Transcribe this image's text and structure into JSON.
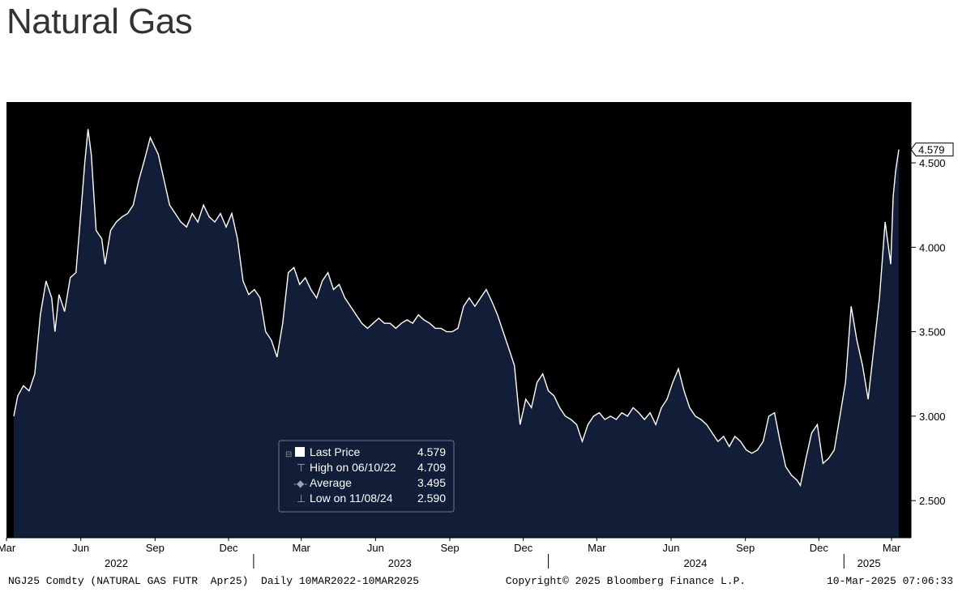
{
  "title": "Natural Gas",
  "chart_data": {
    "type": "area",
    "title": "Natural Gas",
    "xlabel": "",
    "ylabel": "",
    "ylim": [
      2.28,
      4.86
    ],
    "yticks": [
      2.5,
      3.0,
      3.5,
      4.0,
      4.5
    ],
    "ytick_labels": [
      "2.500",
      "3.000",
      "3.500",
      "4.000",
      "4.500"
    ],
    "x_range": [
      "2022-03-01",
      "2025-03-13"
    ],
    "month_ticks": [
      {
        "label": "Mar",
        "date": "2022-03-01"
      },
      {
        "label": "Jun",
        "date": "2022-06-01"
      },
      {
        "label": "Sep",
        "date": "2022-09-01"
      },
      {
        "label": "Dec",
        "date": "2022-12-01"
      },
      {
        "label": "Mar",
        "date": "2023-03-01"
      },
      {
        "label": "Jun",
        "date": "2023-06-01"
      },
      {
        "label": "Sep",
        "date": "2023-09-01"
      },
      {
        "label": "Dec",
        "date": "2023-12-01"
      },
      {
        "label": "Mar",
        "date": "2024-03-01"
      },
      {
        "label": "Jun",
        "date": "2024-06-01"
      },
      {
        "label": "Sep",
        "date": "2024-09-01"
      },
      {
        "label": "Dec",
        "date": "2024-12-01"
      },
      {
        "label": "Mar",
        "date": "2025-03-01"
      }
    ],
    "year_labels": [
      {
        "label": "2022",
        "date": "2022-07-15"
      },
      {
        "label": "2023",
        "date": "2023-07-01"
      },
      {
        "label": "2024",
        "date": "2024-07-01"
      },
      {
        "label": "2025",
        "date": "2025-02-01"
      }
    ],
    "year_dividers": [
      "2023-01-01",
      "2024-01-01",
      "2025-01-01"
    ],
    "series": [
      {
        "name": "Last Price",
        "points": [
          [
            "2022-03-10",
            3.0
          ],
          [
            "2022-03-15",
            3.12
          ],
          [
            "2022-03-22",
            3.18
          ],
          [
            "2022-03-29",
            3.15
          ],
          [
            "2022-04-05",
            3.25
          ],
          [
            "2022-04-12",
            3.6
          ],
          [
            "2022-04-19",
            3.8
          ],
          [
            "2022-04-26",
            3.7
          ],
          [
            "2022-04-30",
            3.5
          ],
          [
            "2022-05-05",
            3.72
          ],
          [
            "2022-05-12",
            3.62
          ],
          [
            "2022-05-19",
            3.82
          ],
          [
            "2022-05-26",
            3.85
          ],
          [
            "2022-06-01",
            4.2
          ],
          [
            "2022-06-06",
            4.5
          ],
          [
            "2022-06-10",
            4.7
          ],
          [
            "2022-06-14",
            4.55
          ],
          [
            "2022-06-20",
            4.1
          ],
          [
            "2022-06-27",
            4.05
          ],
          [
            "2022-07-01",
            3.9
          ],
          [
            "2022-07-08",
            4.1
          ],
          [
            "2022-07-15",
            4.15
          ],
          [
            "2022-07-22",
            4.18
          ],
          [
            "2022-07-29",
            4.2
          ],
          [
            "2022-08-05",
            4.25
          ],
          [
            "2022-08-12",
            4.4
          ],
          [
            "2022-08-19",
            4.52
          ],
          [
            "2022-08-26",
            4.65
          ],
          [
            "2022-08-31",
            4.6
          ],
          [
            "2022-09-05",
            4.55
          ],
          [
            "2022-09-12",
            4.4
          ],
          [
            "2022-09-19",
            4.25
          ],
          [
            "2022-09-26",
            4.2
          ],
          [
            "2022-10-03",
            4.15
          ],
          [
            "2022-10-10",
            4.12
          ],
          [
            "2022-10-17",
            4.2
          ],
          [
            "2022-10-24",
            4.15
          ],
          [
            "2022-10-31",
            4.25
          ],
          [
            "2022-11-07",
            4.18
          ],
          [
            "2022-11-14",
            4.15
          ],
          [
            "2022-11-21",
            4.2
          ],
          [
            "2022-11-28",
            4.12
          ],
          [
            "2022-12-05",
            4.2
          ],
          [
            "2022-12-12",
            4.05
          ],
          [
            "2022-12-19",
            3.8
          ],
          [
            "2022-12-26",
            3.72
          ],
          [
            "2023-01-02",
            3.75
          ],
          [
            "2023-01-09",
            3.7
          ],
          [
            "2023-01-16",
            3.5
          ],
          [
            "2023-01-23",
            3.45
          ],
          [
            "2023-01-30",
            3.35
          ],
          [
            "2023-02-06",
            3.55
          ],
          [
            "2023-02-13",
            3.85
          ],
          [
            "2023-02-20",
            3.88
          ],
          [
            "2023-02-27",
            3.78
          ],
          [
            "2023-03-06",
            3.82
          ],
          [
            "2023-03-13",
            3.75
          ],
          [
            "2023-03-20",
            3.7
          ],
          [
            "2023-03-27",
            3.8
          ],
          [
            "2023-04-03",
            3.85
          ],
          [
            "2023-04-10",
            3.75
          ],
          [
            "2023-04-17",
            3.78
          ],
          [
            "2023-04-24",
            3.7
          ],
          [
            "2023-05-01",
            3.65
          ],
          [
            "2023-05-08",
            3.6
          ],
          [
            "2023-05-15",
            3.55
          ],
          [
            "2023-05-22",
            3.52
          ],
          [
            "2023-05-29",
            3.55
          ],
          [
            "2023-06-05",
            3.58
          ],
          [
            "2023-06-12",
            3.55
          ],
          [
            "2023-06-19",
            3.55
          ],
          [
            "2023-06-26",
            3.52
          ],
          [
            "2023-07-03",
            3.55
          ],
          [
            "2023-07-10",
            3.57
          ],
          [
            "2023-07-17",
            3.55
          ],
          [
            "2023-07-24",
            3.6
          ],
          [
            "2023-07-31",
            3.57
          ],
          [
            "2023-08-07",
            3.55
          ],
          [
            "2023-08-14",
            3.52
          ],
          [
            "2023-08-21",
            3.52
          ],
          [
            "2023-08-28",
            3.5
          ],
          [
            "2023-09-04",
            3.5
          ],
          [
            "2023-09-11",
            3.52
          ],
          [
            "2023-09-18",
            3.65
          ],
          [
            "2023-09-25",
            3.7
          ],
          [
            "2023-10-02",
            3.65
          ],
          [
            "2023-10-09",
            3.7
          ],
          [
            "2023-10-16",
            3.75
          ],
          [
            "2023-10-23",
            3.68
          ],
          [
            "2023-10-30",
            3.6
          ],
          [
            "2023-11-06",
            3.5
          ],
          [
            "2023-11-13",
            3.4
          ],
          [
            "2023-11-20",
            3.3
          ],
          [
            "2023-11-27",
            2.95
          ],
          [
            "2023-12-04",
            3.1
          ],
          [
            "2023-12-11",
            3.05
          ],
          [
            "2023-12-18",
            3.2
          ],
          [
            "2023-12-25",
            3.25
          ],
          [
            "2024-01-01",
            3.15
          ],
          [
            "2024-01-08",
            3.12
          ],
          [
            "2024-01-15",
            3.05
          ],
          [
            "2024-01-22",
            3.0
          ],
          [
            "2024-01-29",
            2.98
          ],
          [
            "2024-02-05",
            2.95
          ],
          [
            "2024-02-12",
            2.85
          ],
          [
            "2024-02-19",
            2.95
          ],
          [
            "2024-02-26",
            3.0
          ],
          [
            "2024-03-04",
            3.02
          ],
          [
            "2024-03-11",
            2.98
          ],
          [
            "2024-03-18",
            3.0
          ],
          [
            "2024-03-25",
            2.98
          ],
          [
            "2024-04-01",
            3.02
          ],
          [
            "2024-04-08",
            3.0
          ],
          [
            "2024-04-15",
            3.05
          ],
          [
            "2024-04-22",
            3.02
          ],
          [
            "2024-04-29",
            2.98
          ],
          [
            "2024-05-06",
            3.02
          ],
          [
            "2024-05-13",
            2.95
          ],
          [
            "2024-05-20",
            3.05
          ],
          [
            "2024-05-27",
            3.1
          ],
          [
            "2024-06-03",
            3.2
          ],
          [
            "2024-06-10",
            3.28
          ],
          [
            "2024-06-17",
            3.15
          ],
          [
            "2024-06-24",
            3.05
          ],
          [
            "2024-07-01",
            3.0
          ],
          [
            "2024-07-08",
            2.98
          ],
          [
            "2024-07-15",
            2.95
          ],
          [
            "2024-07-22",
            2.9
          ],
          [
            "2024-07-29",
            2.85
          ],
          [
            "2024-08-05",
            2.88
          ],
          [
            "2024-08-12",
            2.82
          ],
          [
            "2024-08-19",
            2.88
          ],
          [
            "2024-08-26",
            2.85
          ],
          [
            "2024-09-02",
            2.8
          ],
          [
            "2024-09-09",
            2.78
          ],
          [
            "2024-09-16",
            2.8
          ],
          [
            "2024-09-23",
            2.85
          ],
          [
            "2024-09-30",
            3.0
          ],
          [
            "2024-10-07",
            3.02
          ],
          [
            "2024-10-14",
            2.85
          ],
          [
            "2024-10-21",
            2.7
          ],
          [
            "2024-10-28",
            2.65
          ],
          [
            "2024-11-04",
            2.62
          ],
          [
            "2024-11-08",
            2.59
          ],
          [
            "2024-11-15",
            2.75
          ],
          [
            "2024-11-22",
            2.9
          ],
          [
            "2024-11-29",
            2.95
          ],
          [
            "2024-12-06",
            2.72
          ],
          [
            "2024-12-13",
            2.75
          ],
          [
            "2024-12-20",
            2.8
          ],
          [
            "2024-12-27",
            3.0
          ],
          [
            "2025-01-03",
            3.2
          ],
          [
            "2025-01-10",
            3.65
          ],
          [
            "2025-01-17",
            3.45
          ],
          [
            "2025-01-24",
            3.3
          ],
          [
            "2025-01-31",
            3.1
          ],
          [
            "2025-02-07",
            3.4
          ],
          [
            "2025-02-14",
            3.7
          ],
          [
            "2025-02-21",
            4.15
          ],
          [
            "2025-02-28",
            3.9
          ],
          [
            "2025-03-03",
            4.3
          ],
          [
            "2025-03-06",
            4.45
          ],
          [
            "2025-03-10",
            4.579
          ]
        ]
      }
    ],
    "last_price_label": "4.579",
    "legend": {
      "placement": "bottom-center",
      "items": [
        {
          "label": "Last Price",
          "value": "4.579"
        },
        {
          "label": "High on 06/10/22",
          "value": "4.709"
        },
        {
          "label": "Average",
          "value": "3.495"
        },
        {
          "label": "Low on 11/08/24",
          "value": "2.590"
        }
      ]
    },
    "grid": false,
    "colors": {
      "background": "#000000",
      "area_fill": "#121d38",
      "line": "#ffffff",
      "axis_text": "#000000"
    }
  },
  "footer": {
    "left": "NGJ25 Comdty (NATURAL GAS FUTR  Apr25)  Daily 10MAR2022-10MAR2025",
    "center": "Copyright© 2025 Bloomberg Finance L.P.",
    "right": "10-Mar-2025 07:06:33"
  }
}
